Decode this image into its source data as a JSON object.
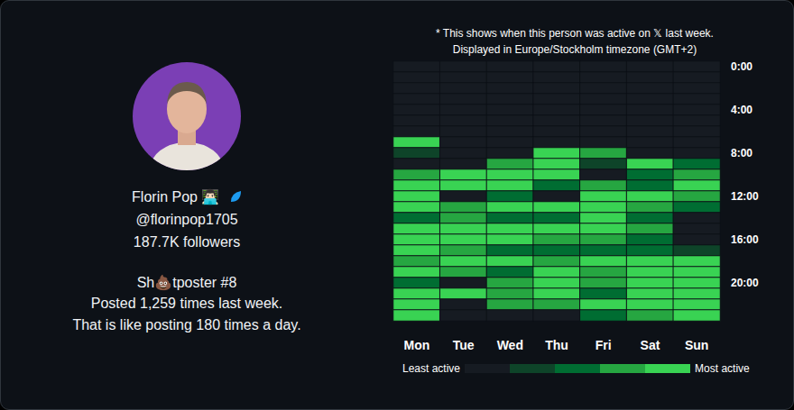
{
  "profile": {
    "name": "Florin Pop 👨🏻‍💻",
    "handle": "@florinpop1705",
    "followers": "187.7K followers",
    "rank": "Sh💩tposter #8",
    "posts_line": "Posted 1,259 times last week.",
    "rate_line": "That is like posting 180 times a day."
  },
  "chart_data": {
    "type": "heatmap",
    "title": "* This shows when this person was active on 𝕏 last week.",
    "subtitle": "Displayed in Europe/Stockholm timezone (GMT+2)",
    "categories": [
      "Mon",
      "Tue",
      "Wed",
      "Thu",
      "Fri",
      "Sat",
      "Sun"
    ],
    "rows": [
      "0:00",
      null,
      null,
      null,
      "4:00",
      null,
      null,
      null,
      "8:00",
      null,
      null,
      null,
      "12:00",
      null,
      null,
      null,
      "16:00",
      null,
      null,
      null,
      "20:00",
      null,
      null,
      null
    ],
    "cells": [
      [
        0,
        0,
        0,
        0,
        0,
        0,
        0
      ],
      [
        0,
        0,
        0,
        0,
        0,
        0,
        0
      ],
      [
        0,
        0,
        0,
        0,
        0,
        0,
        0
      ],
      [
        0,
        0,
        0,
        0,
        0,
        0,
        0
      ],
      [
        0,
        0,
        0,
        0,
        0,
        0,
        0
      ],
      [
        0,
        0,
        0,
        0,
        0,
        0,
        0
      ],
      [
        0,
        0,
        0,
        0,
        0,
        0,
        0
      ],
      [
        4,
        0,
        0,
        0,
        0,
        0,
        0
      ],
      [
        1,
        0,
        0,
        4,
        3,
        0,
        0
      ],
      [
        0,
        0,
        3,
        4,
        1,
        4,
        2
      ],
      [
        3,
        4,
        4,
        4,
        0,
        2,
        3
      ],
      [
        4,
        4,
        4,
        2,
        3,
        2,
        4
      ],
      [
        4,
        0,
        2,
        0,
        4,
        4,
        3
      ],
      [
        4,
        3,
        4,
        4,
        4,
        3,
        2
      ],
      [
        2,
        3,
        2,
        2,
        4,
        2,
        0
      ],
      [
        4,
        4,
        4,
        4,
        4,
        3,
        0
      ],
      [
        4,
        4,
        4,
        3,
        3,
        2,
        0
      ],
      [
        4,
        3,
        2,
        2,
        2,
        2,
        1
      ],
      [
        3,
        4,
        4,
        3,
        4,
        4,
        4
      ],
      [
        4,
        3,
        2,
        4,
        3,
        4,
        4
      ],
      [
        2,
        0,
        3,
        4,
        3,
        4,
        4
      ],
      [
        4,
        4,
        3,
        4,
        2,
        4,
        4
      ],
      [
        4,
        0,
        3,
        3,
        4,
        4,
        4
      ],
      [
        4,
        0,
        0,
        0,
        2,
        3,
        4
      ]
    ],
    "color_scale": {
      "min": 0,
      "max": 4,
      "ticks": [
        0,
        1,
        2,
        3,
        4
      ],
      "colors": [
        "#161b22",
        "#0e4429",
        "#006d32",
        "#26a641",
        "#39d353"
      ],
      "labels": [
        "Least active",
        "Most active"
      ]
    }
  }
}
